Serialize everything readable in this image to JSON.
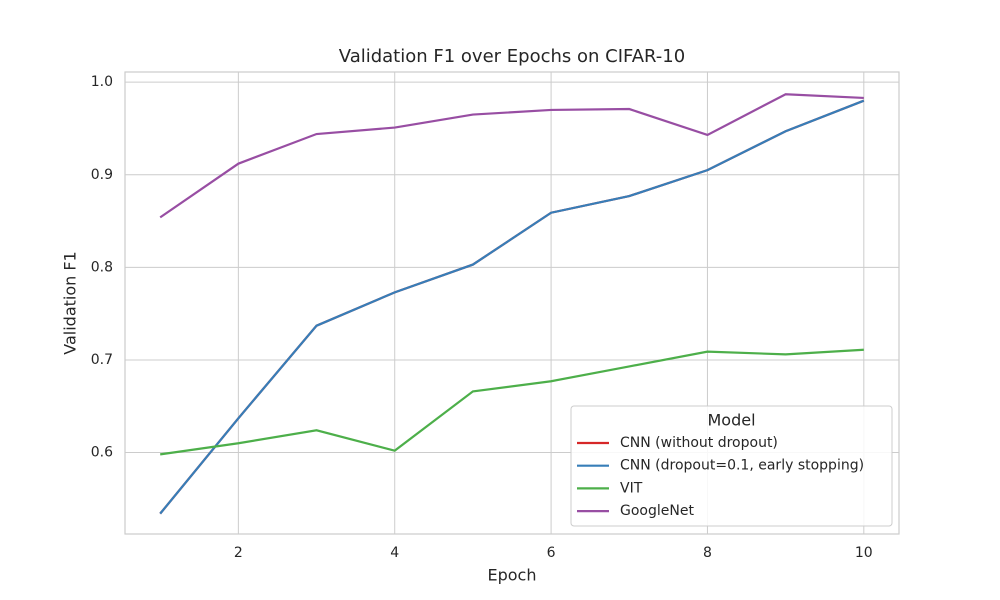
{
  "chart_data": {
    "type": "line",
    "title": "Validation F1 over Epochs on CIFAR-10",
    "x_label": "Epoch",
    "y_label": "Validation F1",
    "x": [
      1,
      2,
      3,
      4,
      5,
      6,
      7,
      8,
      9,
      10
    ],
    "series": [
      {
        "name": "CNN (without dropout)",
        "color": "#d62728",
        "values": [
          0.534,
          0.637,
          0.737,
          0.773,
          0.803,
          0.859,
          0.877,
          0.905,
          0.947,
          0.98
        ]
      },
      {
        "name": "CNN (dropout=0.1, early stopping)",
        "color": "#377eb8",
        "values": [
          0.534,
          0.637,
          0.737,
          0.773,
          0.803,
          0.859,
          0.877,
          0.905,
          0.947,
          0.98
        ]
      },
      {
        "name": "VIT",
        "color": "#4daf4a",
        "values": [
          0.598,
          0.61,
          0.624,
          0.602,
          0.666,
          0.677,
          0.693,
          0.709,
          0.706,
          0.711
        ]
      },
      {
        "name": "GoogleNet",
        "color": "#984ea3",
        "values": [
          0.854,
          0.912,
          0.944,
          0.951,
          0.965,
          0.97,
          0.971,
          0.943,
          0.987,
          0.983
        ]
      }
    ],
    "xlim": [
      0.55,
      10.45
    ],
    "xticks": [
      2,
      4,
      6,
      8,
      10
    ],
    "ylim": [
      0.512,
      1.011
    ],
    "yticks": [
      0.6,
      0.7,
      0.8,
      0.9,
      {
        "value": 1.0,
        "label": "1.0"
      }
    ],
    "grid": true,
    "legend_title": "Model",
    "legend_position": "lower right"
  }
}
